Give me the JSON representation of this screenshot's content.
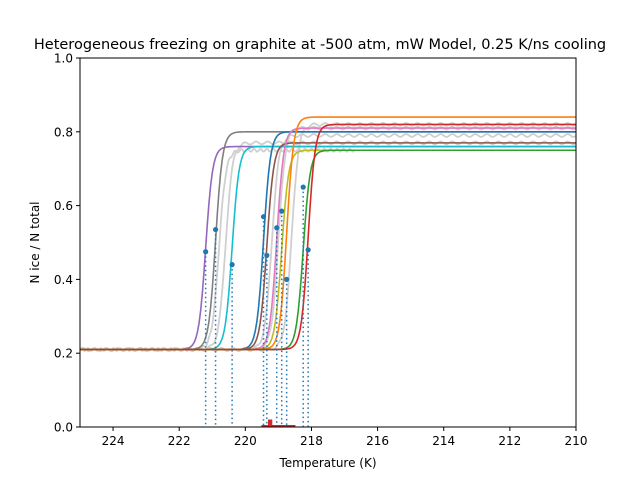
{
  "chart_data": {
    "type": "line",
    "title": "Heterogeneous freezing on graphite at -500 atm, mW Model, 0.25 K/ns cooling",
    "xlabel": "Temperature (K)",
    "ylabel": "N ice / N total",
    "xlim": [
      225,
      210
    ],
    "ylim": [
      0,
      1.0
    ],
    "x_inverted": true,
    "grid": false,
    "xticks": [
      224,
      222,
      220,
      218,
      216,
      214,
      212,
      210
    ],
    "xtick_labels": [
      "224",
      "222",
      "220",
      "218",
      "216",
      "214",
      "212",
      "210"
    ],
    "yticks": [
      0.0,
      0.2,
      0.4,
      0.6,
      0.8,
      1.0
    ],
    "ytick_labels": [
      "0.0",
      "0.2",
      "0.4",
      "0.6",
      "0.8",
      "1.0"
    ],
    "transition_width_K": 0.3,
    "baseline": 0.21,
    "gray_background_color": "#cfcfcf",
    "series": [
      {
        "color": "#9467bd",
        "t_freeze": 221.2,
        "plateau": 0.76,
        "midpoint": [
          221.2,
          0.475
        ]
      },
      {
        "color": "#7f7f7f",
        "t_freeze": 220.9,
        "plateau": 0.8,
        "midpoint": [
          220.9,
          0.535
        ]
      },
      {
        "color": "#17becf",
        "t_freeze": 220.4,
        "plateau": 0.76,
        "midpoint": [
          220.4,
          0.44
        ]
      },
      {
        "color": "#1f77b4",
        "t_freeze": 219.45,
        "plateau": 0.8,
        "midpoint": [
          219.45,
          0.57
        ]
      },
      {
        "color": "#8c564b",
        "t_freeze": 219.35,
        "plateau": 0.77,
        "midpoint": [
          219.35,
          0.465
        ]
      },
      {
        "color": "#e377c2",
        "t_freeze": 219.05,
        "plateau": 0.81,
        "midpoint": [
          219.05,
          0.54
        ]
      },
      {
        "color": "#bcbd22",
        "t_freeze": 218.9,
        "plateau": 0.75,
        "midpoint": [
          218.9,
          0.585
        ]
      },
      {
        "color": "#ff7f0e",
        "t_freeze": 218.75,
        "plateau": 0.84,
        "midpoint": [
          218.75,
          0.4
        ]
      },
      {
        "color": "#2ca02c",
        "t_freeze": 218.25,
        "plateau": 0.75,
        "midpoint": [
          218.25,
          0.65
        ]
      },
      {
        "color": "#d62728",
        "t_freeze": 218.1,
        "plateau": 0.82,
        "midpoint": [
          218.1,
          0.48
        ]
      }
    ],
    "gray_background_series": [
      {
        "t_freeze": 220.8,
        "plateau": 0.75,
        "end_x": 216.7
      },
      {
        "t_freeze": 220.6,
        "plateau": 0.77,
        "end_x": 210.0
      },
      {
        "t_freeze": 219.2,
        "plateau": 0.79,
        "end_x": 210.0
      },
      {
        "t_freeze": 219.0,
        "plateau": 0.81,
        "end_x": 210.0
      },
      {
        "t_freeze": 218.6,
        "plateau": 0.82,
        "end_x": 210.0
      }
    ],
    "marker_color": "#1f77b4",
    "histogram_color": "#d62728"
  }
}
